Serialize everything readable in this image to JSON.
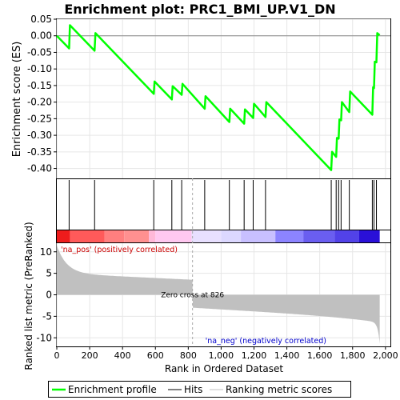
{
  "chart_data": {
    "type": "line",
    "title": "Enrichment plot: PRC1_BMI_UP.V1_DN",
    "es_panel": {
      "ylabel": "Enrichment score (ES)",
      "ylim": [
        -0.43,
        0.05
      ],
      "yticks": [
        0.05,
        0.0,
        -0.05,
        -0.1,
        -0.15,
        -0.2,
        -0.25,
        -0.3,
        -0.35,
        -0.4
      ],
      "ytick_labels": [
        "0.05",
        "0.00",
        "-0.05",
        "-0.10",
        "-0.15",
        "-0.20",
        "-0.25",
        "-0.30",
        "-0.35",
        "-0.40"
      ],
      "color": "#00ff00",
      "points": [
        [
          0,
          0.0
        ],
        [
          75,
          -0.038
        ],
        [
          80,
          0.032
        ],
        [
          230,
          -0.045
        ],
        [
          235,
          0.008
        ],
        [
          590,
          -0.175
        ],
        [
          595,
          -0.138
        ],
        [
          700,
          -0.192
        ],
        [
          705,
          -0.152
        ],
        [
          760,
          -0.178
        ],
        [
          765,
          -0.145
        ],
        [
          900,
          -0.22
        ],
        [
          905,
          -0.182
        ],
        [
          1050,
          -0.26
        ],
        [
          1055,
          -0.22
        ],
        [
          1140,
          -0.265
        ],
        [
          1145,
          -0.222
        ],
        [
          1195,
          -0.248
        ],
        [
          1200,
          -0.205
        ],
        [
          1270,
          -0.245
        ],
        [
          1275,
          -0.2
        ],
        [
          1670,
          -0.405
        ],
        [
          1675,
          -0.35
        ],
        [
          1700,
          -0.365
        ],
        [
          1705,
          -0.308
        ],
        [
          1715,
          -0.31
        ],
        [
          1720,
          -0.252
        ],
        [
          1730,
          -0.255
        ],
        [
          1735,
          -0.2
        ],
        [
          1780,
          -0.23
        ],
        [
          1785,
          -0.168
        ],
        [
          1920,
          -0.238
        ],
        [
          1925,
          -0.155
        ],
        [
          1930,
          -0.158
        ],
        [
          1935,
          -0.078
        ],
        [
          1945,
          -0.08
        ],
        [
          1950,
          0.008
        ],
        [
          1965,
          0.002
        ]
      ]
    },
    "hits": [
      75,
      230,
      590,
      700,
      760,
      900,
      1050,
      1140,
      1195,
      1270,
      1670,
      1700,
      1715,
      1730,
      1780,
      1920,
      1930,
      1945
    ],
    "metric_panel": {
      "ylabel": "Ranked list metric (PreRanked)",
      "ylim": [
        -12,
        12
      ],
      "yticks": [
        10,
        5,
        0,
        -5,
        -10
      ],
      "ytick_labels": [
        "10",
        "5",
        "0",
        "-5",
        "-10"
      ],
      "zero_cross_rank": 826,
      "zero_cross_label": "Zero cross at 826",
      "pos_label": "'na_pos' (positively correlated)",
      "neg_label": "'na_neg' (negatively correlated)",
      "pos_color": "#ff0000",
      "neg_color": "#0000ff",
      "fill_color": "#c0c0c0"
    },
    "xlabel": "Rank in Ordered Dataset",
    "xlim": [
      0,
      2030
    ],
    "n_genes": 1965,
    "xticks": [
      0,
      200,
      400,
      600,
      800,
      1000,
      1200,
      1400,
      1600,
      1800,
      2000
    ],
    "xtick_labels": [
      "0",
      "200",
      "400",
      "600",
      "800",
      "1,000",
      "1,200",
      "1,400",
      "1,600",
      "1,800",
      "2,000"
    ],
    "color_bar": [
      {
        "start": 0,
        "end": 80,
        "color": "#ee1c1c"
      },
      {
        "start": 80,
        "end": 290,
        "color": "#ff5a5a"
      },
      {
        "start": 290,
        "end": 410,
        "color": "#ff7f7f"
      },
      {
        "start": 410,
        "end": 560,
        "color": "#ff9090"
      },
      {
        "start": 560,
        "end": 600,
        "color": "#ffb8d8"
      },
      {
        "start": 600,
        "end": 820,
        "color": "#ffc8f0"
      },
      {
        "start": 820,
        "end": 1000,
        "color": "#e8e0ff"
      },
      {
        "start": 1000,
        "end": 1120,
        "color": "#dcd8ff"
      },
      {
        "start": 1120,
        "end": 1330,
        "color": "#c8c0ff"
      },
      {
        "start": 1330,
        "end": 1500,
        "color": "#8c84ff"
      },
      {
        "start": 1500,
        "end": 1690,
        "color": "#6a5ef0"
      },
      {
        "start": 1690,
        "end": 1840,
        "color": "#5242e8"
      },
      {
        "start": 1840,
        "end": 1965,
        "color": "#2a10d8"
      }
    ],
    "legend": {
      "placement": "bottom",
      "items": [
        "Enrichment profile",
        "Hits",
        "Ranking metric scores"
      ],
      "colors": [
        "#00ff00",
        "#000000",
        "#c0c0c0"
      ]
    }
  }
}
